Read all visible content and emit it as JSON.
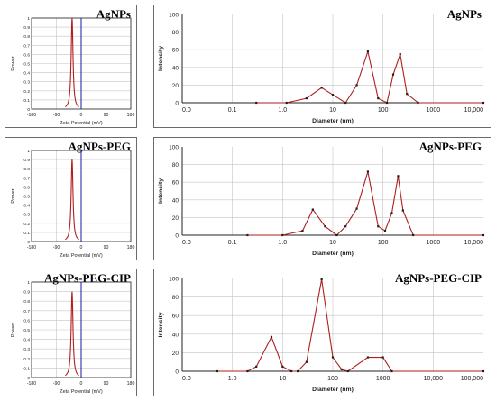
{
  "colors": {
    "data": "#b01e1e",
    "marker": "#1f1f1f",
    "zero_line": "#1a1aa0",
    "grid": "#c4c4c4",
    "axis": "#222222"
  },
  "chart_data": [
    {
      "id": "zeta-agnps",
      "type": "line",
      "title": "AgNPs",
      "xlabel": "Zeta Potential (mV)",
      "ylabel": "Power",
      "xlim": [
        -180,
        180
      ],
      "ylim": [
        0,
        1
      ],
      "x_ticks": [
        "-180",
        "-90",
        "0",
        "90",
        "180"
      ],
      "y_ticks": [
        "0",
        "0.1",
        "0.2",
        "0.3",
        "0.4",
        "0.5",
        "0.6",
        "0.7",
        "0.8",
        "0.9",
        "1"
      ],
      "peak_center": -33,
      "peak_height": 1.0,
      "peak_halfwidth": 4,
      "zero_line_x": 0
    },
    {
      "id": "size-agnps",
      "type": "line",
      "title": "AgNPs",
      "xlabel": "Diameter (nm)",
      "ylabel": "Intensity",
      "x_scale": "log",
      "xlim": [
        0.01,
        10000
      ],
      "ylim": [
        0,
        100
      ],
      "x_ticks": [
        "0.0",
        "0.1",
        "1.0",
        "10",
        "100",
        "1000",
        "10,000"
      ],
      "y_ticks": [
        "0",
        "20",
        "40",
        "60",
        "80",
        "100"
      ],
      "points": [
        [
          0.3,
          0
        ],
        [
          1.2,
          0
        ],
        [
          3,
          5
        ],
        [
          6,
          17
        ],
        [
          10,
          9
        ],
        [
          18,
          0
        ],
        [
          30,
          20
        ],
        [
          50,
          58
        ],
        [
          80,
          5
        ],
        [
          120,
          0
        ],
        [
          160,
          32
        ],
        [
          220,
          55
        ],
        [
          300,
          10
        ],
        [
          500,
          0
        ],
        [
          10000,
          0
        ]
      ]
    },
    {
      "id": "zeta-agnps-peg",
      "type": "line",
      "title": "AgNPs-PEG",
      "xlabel": "Zeta Potential (mV)",
      "ylabel": "Power",
      "xlim": [
        -180,
        180
      ],
      "ylim": [
        0,
        1
      ],
      "x_ticks": [
        "-180",
        "-90",
        "0",
        "90",
        "180"
      ],
      "y_ticks": [
        "0",
        "0.1",
        "0.2",
        "0.3",
        "0.4",
        "0.5",
        "0.6",
        "0.7",
        "0.8",
        "0.9",
        "1"
      ],
      "peak_center": -33,
      "peak_height": 0.9,
      "peak_halfwidth": 4,
      "zero_line_x": 0
    },
    {
      "id": "size-agnps-peg",
      "type": "line",
      "title": "AgNPs-PEG",
      "xlabel": "Diameter (nm)",
      "ylabel": "Intensity",
      "x_scale": "log",
      "xlim": [
        0.01,
        10000
      ],
      "ylim": [
        0,
        100
      ],
      "x_ticks": [
        "0.0",
        "0.1",
        "1.0",
        "10",
        "100",
        "1000",
        "10,000"
      ],
      "y_ticks": [
        "0",
        "20",
        "40",
        "60",
        "80",
        "100"
      ],
      "points": [
        [
          0.2,
          0
        ],
        [
          1,
          0
        ],
        [
          2.5,
          5
        ],
        [
          4,
          29
        ],
        [
          7,
          10
        ],
        [
          12,
          0
        ],
        [
          18,
          10
        ],
        [
          30,
          30
        ],
        [
          50,
          72
        ],
        [
          80,
          10
        ],
        [
          110,
          5
        ],
        [
          150,
          25
        ],
        [
          200,
          67
        ],
        [
          250,
          28
        ],
        [
          400,
          0
        ],
        [
          10000,
          0
        ]
      ]
    },
    {
      "id": "zeta-agnps-peg-cip",
      "type": "line",
      "title": "AgNPs-PEG-CIP",
      "xlabel": "Zeta Potential (mV)",
      "ylabel": "Power",
      "xlim": [
        -180,
        180
      ],
      "ylim": [
        0,
        1
      ],
      "x_ticks": [
        "-180",
        "-90",
        "0",
        "90",
        "180"
      ],
      "y_ticks": [
        "0",
        "0.1",
        "0.2",
        "0.3",
        "0.4",
        "0.5",
        "0.6",
        "0.7",
        "0.8",
        "0.9",
        "1"
      ],
      "peak_center": -33,
      "peak_height": 0.9,
      "peak_halfwidth": 4,
      "zero_line_x": 0
    },
    {
      "id": "size-agnps-peg-cip",
      "type": "line",
      "title": "AgNPs-PEG-CIP",
      "xlabel": "Diameter (nm)",
      "ylabel": "Intensity",
      "x_scale": "log",
      "xlim": [
        0.1,
        100000
      ],
      "ylim": [
        0,
        100
      ],
      "x_ticks": [
        "0.0",
        "1.0",
        "10",
        "100",
        "1000",
        "10,000",
        "100,000"
      ],
      "y_ticks": [
        "0",
        "20",
        "40",
        "60",
        "80",
        "100"
      ],
      "points": [
        [
          0.5,
          0
        ],
        [
          2,
          0
        ],
        [
          3,
          5
        ],
        [
          6,
          37
        ],
        [
          10,
          5
        ],
        [
          15,
          0
        ],
        [
          20,
          0
        ],
        [
          30,
          10
        ],
        [
          60,
          99
        ],
        [
          100,
          15
        ],
        [
          150,
          2
        ],
        [
          200,
          0
        ],
        [
          500,
          15
        ],
        [
          1000,
          15
        ],
        [
          1500,
          0
        ],
        [
          100000,
          0
        ]
      ]
    }
  ]
}
